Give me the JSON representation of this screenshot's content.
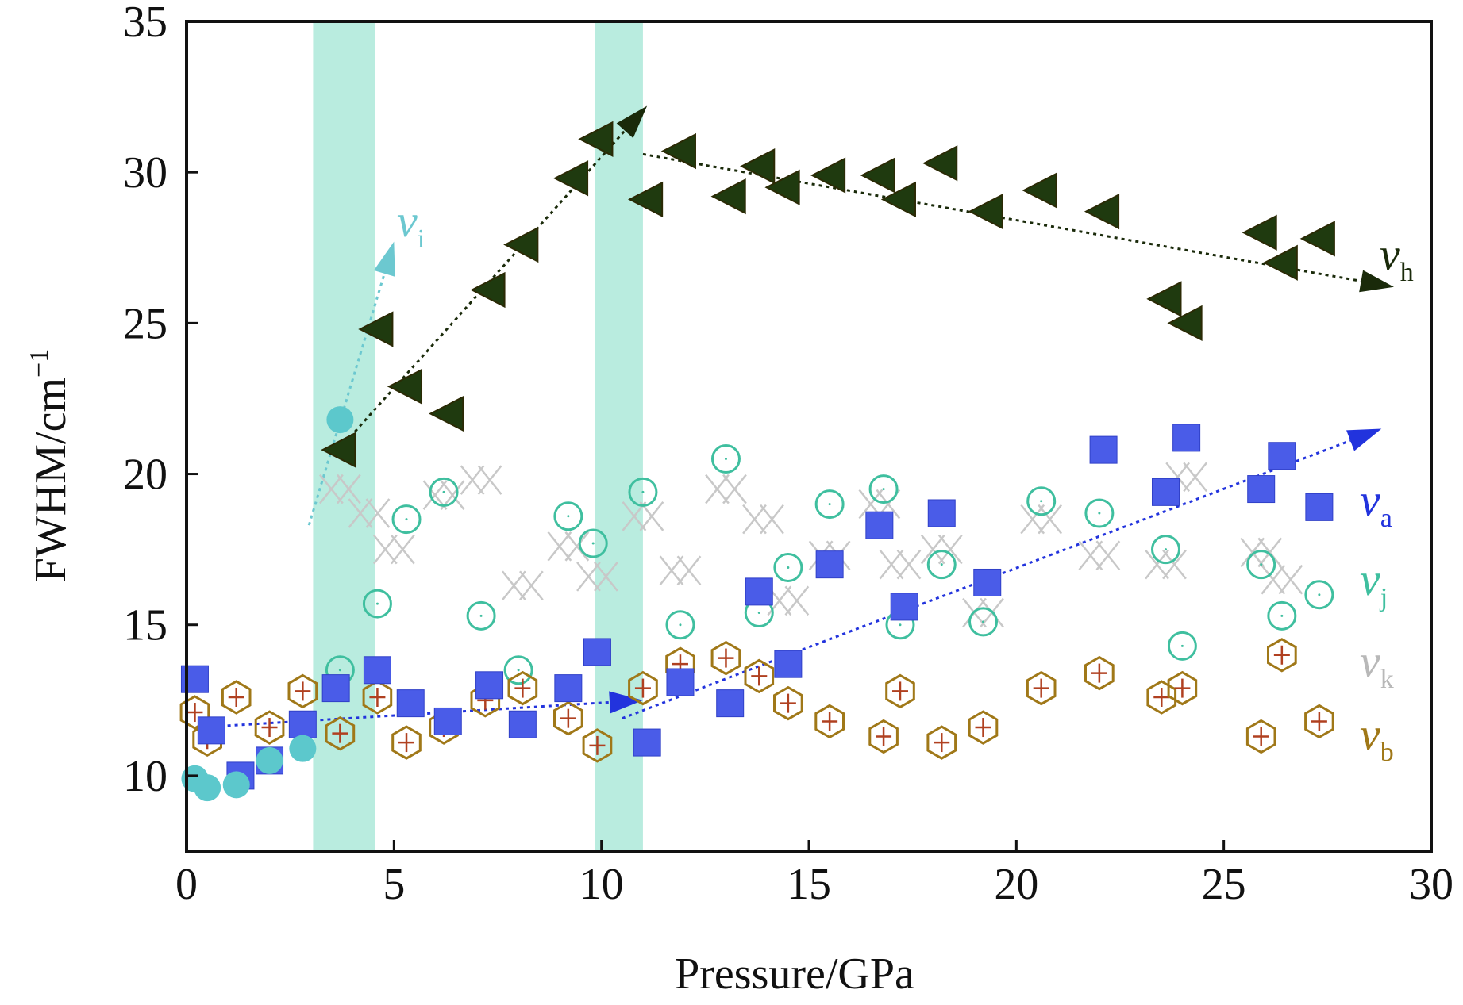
{
  "chart_data": {
    "type": "scatter",
    "xlabel": "Pressure/GPa",
    "ylabel_main": "FWHM/cm",
    "ylabel_sup": "−1",
    "xlim": [
      0,
      30
    ],
    "ylim": [
      7.5,
      35
    ],
    "xticks": [
      0,
      5,
      10,
      15,
      20,
      25,
      30
    ],
    "yticks": [
      10,
      15,
      20,
      25,
      30,
      35
    ],
    "grid": false,
    "shaded_regions": [
      {
        "name": "transition-band-1",
        "x0": 3.05,
        "x1": 4.55,
        "color": "#b9ecdf"
      },
      {
        "name": "transition-band-2",
        "x0": 9.85,
        "x1": 11.0,
        "color": "#b9ecdf"
      }
    ],
    "series": [
      {
        "name": "h",
        "label_base": "ν",
        "label_sub": "h",
        "marker": "triangle-left",
        "color": "#1f3a0f",
        "points": [
          [
            3.7,
            20.8
          ],
          [
            4.6,
            24.8
          ],
          [
            5.3,
            22.9
          ],
          [
            6.3,
            22.0
          ],
          [
            7.3,
            26.1
          ],
          [
            8.1,
            27.6
          ],
          [
            9.3,
            29.8
          ],
          [
            9.9,
            31.1
          ],
          [
            11.1,
            29.1
          ],
          [
            11.9,
            30.7
          ],
          [
            13.1,
            29.2
          ],
          [
            13.8,
            30.2
          ],
          [
            14.4,
            29.5
          ],
          [
            15.5,
            29.9
          ],
          [
            16.7,
            29.9
          ],
          [
            17.2,
            29.1
          ],
          [
            18.2,
            30.3
          ],
          [
            19.3,
            28.7
          ],
          [
            20.6,
            29.4
          ],
          [
            22.1,
            28.7
          ],
          [
            23.6,
            25.8
          ],
          [
            24.1,
            25.0
          ],
          [
            25.9,
            28.0
          ],
          [
            26.4,
            27.0
          ],
          [
            27.3,
            27.8
          ]
        ],
        "trend_lines": [
          [
            [
              3.6,
              20.7
            ],
            [
              11.1,
              32.2
            ]
          ],
          [
            [
              11.0,
              30.6
            ],
            [
              29.1,
              26.2
            ]
          ]
        ]
      },
      {
        "name": "i",
        "label_base": "ν",
        "label_sub": "i",
        "marker": "filled-circle",
        "color": "#5cc8cc",
        "points": [
          [
            0.2,
            9.9
          ],
          [
            0.5,
            9.6
          ],
          [
            1.2,
            9.7
          ],
          [
            2.0,
            10.5
          ],
          [
            2.8,
            10.9
          ],
          [
            3.7,
            21.8
          ]
        ],
        "trend_lines": [
          [
            [
              2.95,
              18.3
            ],
            [
              5.0,
              27.7
            ]
          ]
        ]
      },
      {
        "name": "a",
        "label_base": "ν",
        "label_sub": "a",
        "marker": "filled-square",
        "color": "#4a5ce8",
        "points": [
          [
            0.2,
            13.2
          ],
          [
            0.6,
            11.5
          ],
          [
            1.3,
            10.0
          ],
          [
            2.0,
            10.5
          ],
          [
            2.8,
            11.7
          ],
          [
            3.6,
            12.9
          ],
          [
            4.6,
            13.5
          ],
          [
            5.4,
            12.4
          ],
          [
            6.3,
            11.8
          ],
          [
            7.3,
            13.0
          ],
          [
            8.1,
            11.7
          ],
          [
            9.2,
            12.9
          ],
          [
            9.9,
            14.1
          ],
          [
            11.1,
            11.1
          ],
          [
            11.9,
            13.1
          ],
          [
            13.1,
            12.4
          ],
          [
            13.8,
            16.1
          ],
          [
            14.5,
            13.7
          ],
          [
            15.5,
            17.0
          ],
          [
            16.7,
            18.3
          ],
          [
            17.3,
            15.6
          ],
          [
            18.2,
            18.7
          ],
          [
            19.3,
            16.4
          ],
          [
            22.1,
            20.8
          ],
          [
            23.6,
            19.4
          ],
          [
            24.1,
            21.2
          ],
          [
            25.9,
            19.5
          ],
          [
            26.4,
            20.6
          ],
          [
            27.3,
            18.9
          ]
        ],
        "trend_lines": [
          [
            [
              0.3,
              11.6
            ],
            [
              11.0,
              12.5
            ]
          ],
          [
            [
              10.5,
              11.9
            ],
            [
              28.8,
              21.5
            ]
          ]
        ]
      },
      {
        "name": "j",
        "label_base": "ν",
        "label_sub": "j",
        "marker": "open-circle",
        "color": "#3fbf9f",
        "points": [
          [
            3.7,
            13.5
          ],
          [
            4.6,
            15.7
          ],
          [
            5.3,
            18.5
          ],
          [
            6.2,
            19.4
          ],
          [
            7.1,
            15.3
          ],
          [
            8.0,
            13.5
          ],
          [
            9.2,
            18.6
          ],
          [
            9.8,
            17.7
          ],
          [
            11.0,
            19.4
          ],
          [
            11.9,
            15.0
          ],
          [
            13.0,
            20.5
          ],
          [
            13.8,
            15.4
          ],
          [
            14.5,
            16.9
          ],
          [
            15.5,
            19.0
          ],
          [
            16.8,
            19.5
          ],
          [
            17.2,
            15.0
          ],
          [
            18.2,
            17.0
          ],
          [
            19.2,
            15.1
          ],
          [
            20.6,
            19.1
          ],
          [
            22.0,
            18.7
          ],
          [
            23.6,
            17.5
          ],
          [
            24.0,
            14.3
          ],
          [
            25.9,
            17.0
          ],
          [
            26.4,
            15.3
          ],
          [
            27.3,
            16.0
          ]
        ],
        "trend_lines": []
      },
      {
        "name": "k",
        "label_base": "ν",
        "label_sub": "k",
        "marker": "double-cross",
        "color": "#c8c8c8",
        "points": [
          [
            3.7,
            19.5
          ],
          [
            4.4,
            18.7
          ],
          [
            5.0,
            17.5
          ],
          [
            6.2,
            19.3
          ],
          [
            7.1,
            19.8
          ],
          [
            8.1,
            16.3
          ],
          [
            9.2,
            17.6
          ],
          [
            9.9,
            16.6
          ],
          [
            11.0,
            18.6
          ],
          [
            11.9,
            16.8
          ],
          [
            13.0,
            19.5
          ],
          [
            13.9,
            18.5
          ],
          [
            14.5,
            15.8
          ],
          [
            15.5,
            17.3
          ],
          [
            16.7,
            19.0
          ],
          [
            17.2,
            17.0
          ],
          [
            18.2,
            17.5
          ],
          [
            19.2,
            15.4
          ],
          [
            20.6,
            18.5
          ],
          [
            22.0,
            17.3
          ],
          [
            23.6,
            17.0
          ],
          [
            24.1,
            19.9
          ],
          [
            25.9,
            17.4
          ],
          [
            26.4,
            16.5
          ]
        ],
        "trend_lines": []
      },
      {
        "name": "b",
        "label_base": "ν",
        "label_sub": "b",
        "marker": "hexagon-cross",
        "color": "#a07818",
        "points": [
          [
            0.2,
            12.1
          ],
          [
            0.5,
            11.2
          ],
          [
            1.2,
            12.6
          ],
          [
            2.0,
            11.6
          ],
          [
            2.8,
            12.8
          ],
          [
            3.7,
            11.4
          ],
          [
            4.6,
            12.6
          ],
          [
            5.3,
            11.1
          ],
          [
            6.2,
            11.6
          ],
          [
            7.2,
            12.5
          ],
          [
            8.1,
            12.9
          ],
          [
            9.2,
            11.9
          ],
          [
            9.9,
            11.0
          ],
          [
            11.0,
            12.9
          ],
          [
            11.9,
            13.7
          ],
          [
            13.0,
            13.9
          ],
          [
            13.8,
            13.3
          ],
          [
            14.5,
            12.4
          ],
          [
            15.5,
            11.8
          ],
          [
            16.8,
            11.3
          ],
          [
            17.2,
            12.8
          ],
          [
            18.2,
            11.1
          ],
          [
            19.2,
            11.6
          ],
          [
            20.6,
            12.9
          ],
          [
            22.0,
            13.4
          ],
          [
            23.5,
            12.6
          ],
          [
            24.0,
            12.9
          ],
          [
            25.9,
            11.3
          ],
          [
            26.4,
            14.0
          ],
          [
            27.3,
            11.8
          ]
        ],
        "trend_lines": []
      }
    ]
  }
}
